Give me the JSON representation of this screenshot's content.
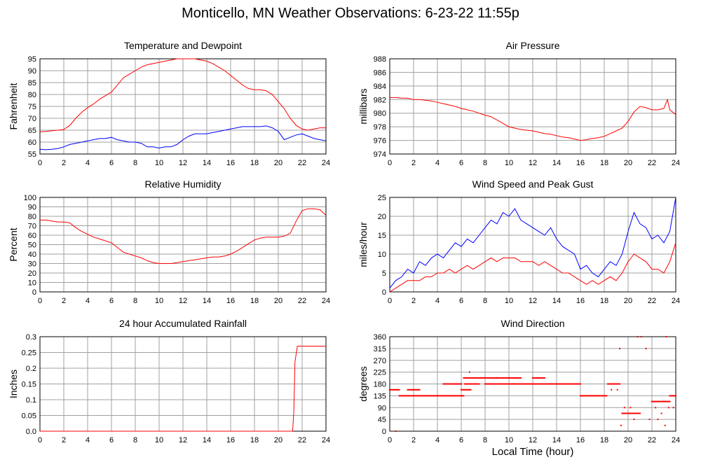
{
  "title": "Monticello, MN Weather Observations: 6-23-22 11:55p",
  "xlabel_shared": "Local Time (hour)",
  "chart_data": [
    {
      "type": "line",
      "title": "Temperature and Dewpoint",
      "ylabel": "Fahrenheit",
      "xlim": [
        0,
        24
      ],
      "ylim": [
        55,
        95
      ],
      "xticks": [
        0,
        2,
        4,
        6,
        8,
        10,
        12,
        14,
        16,
        18,
        20,
        22,
        24
      ],
      "yticks": [
        55,
        60,
        65,
        70,
        75,
        80,
        85,
        90,
        95
      ],
      "grid": true,
      "series": [
        {
          "color": "#ff0000",
          "x": [
            0,
            0.5,
            1,
            1.5,
            2,
            2.5,
            3,
            3.5,
            4,
            4.5,
            5,
            5.5,
            6,
            6.5,
            7,
            7.5,
            8,
            8.5,
            9,
            9.5,
            10,
            10.5,
            11,
            11.5,
            12,
            12.5,
            13,
            13.5,
            14,
            14.5,
            15,
            15.5,
            16,
            16.5,
            17,
            17.5,
            18,
            18.5,
            19,
            19.5,
            20,
            20.5,
            21,
            21.5,
            22,
            22.5,
            23,
            23.5,
            24
          ],
          "y": [
            64.3,
            64.5,
            64.8,
            65,
            65.3,
            67,
            70,
            72.5,
            74.5,
            76,
            78,
            79.5,
            81,
            84,
            87,
            88.5,
            90,
            91.5,
            92.5,
            93,
            93.5,
            94,
            94.5,
            95,
            95,
            95,
            95,
            94.5,
            94,
            93,
            91.5,
            90,
            88,
            86,
            84,
            82.5,
            82,
            82,
            81.5,
            80,
            77,
            74,
            70,
            67,
            65.5,
            65,
            65.5,
            66,
            66
          ]
        },
        {
          "color": "#0000ff",
          "x": [
            0,
            0.5,
            1,
            1.5,
            2,
            2.5,
            3,
            3.5,
            4,
            4.5,
            5,
            5.5,
            6,
            6.5,
            7,
            7.5,
            8,
            8.5,
            9,
            9.5,
            10,
            10.5,
            11,
            11.5,
            12,
            12.5,
            13,
            13.5,
            14,
            14.5,
            15,
            15.5,
            16,
            16.5,
            17,
            17.5,
            18,
            18.5,
            19,
            19.5,
            20,
            20.5,
            21,
            21.5,
            22,
            22.5,
            23,
            23.5,
            24
          ],
          "y": [
            57,
            56.8,
            57,
            57.3,
            58,
            59,
            59.5,
            60,
            60.5,
            61,
            61.5,
            61.5,
            62,
            61,
            60.5,
            60,
            60,
            59.5,
            58,
            58,
            57.5,
            58,
            58,
            59,
            61,
            62.5,
            63.5,
            63.5,
            63.5,
            64,
            64.5,
            65,
            65.5,
            66,
            66.5,
            66.5,
            66.5,
            66.5,
            66.8,
            66,
            64.5,
            61,
            62,
            63,
            63.5,
            62.5,
            61.5,
            61,
            60.5
          ]
        }
      ]
    },
    {
      "type": "line",
      "title": "Air Pressure",
      "ylabel": "millibars",
      "xlim": [
        0,
        24
      ],
      "ylim": [
        974,
        988
      ],
      "xticks": [
        0,
        2,
        4,
        6,
        8,
        10,
        12,
        14,
        16,
        18,
        20,
        22,
        24
      ],
      "yticks": [
        974,
        976,
        978,
        980,
        982,
        984,
        986,
        988
      ],
      "grid": true,
      "series": [
        {
          "color": "#ff0000",
          "x": [
            0,
            0.5,
            1,
            1.5,
            2,
            2.5,
            3,
            3.5,
            4,
            4.5,
            5,
            5.5,
            6,
            6.5,
            7,
            7.5,
            8,
            8.5,
            9,
            9.5,
            10,
            10.5,
            11,
            11.5,
            12,
            12.5,
            13,
            13.5,
            14,
            14.5,
            15,
            15.5,
            16,
            16.5,
            17,
            17.5,
            18,
            18.5,
            19,
            19.5,
            20,
            20.5,
            21,
            21.5,
            22,
            22.5,
            23,
            23.3,
            23.5,
            24
          ],
          "y": [
            982.3,
            982.3,
            982.2,
            982.2,
            982,
            982,
            981.9,
            981.8,
            981.6,
            981.4,
            981.2,
            981,
            980.7,
            980.5,
            980.3,
            980,
            979.7,
            979.5,
            979,
            978.5,
            978,
            977.8,
            977.6,
            977.5,
            977.4,
            977.2,
            977,
            976.9,
            976.7,
            976.5,
            976.4,
            976.2,
            976,
            976.1,
            976.3,
            976.4,
            976.6,
            977,
            977.4,
            977.8,
            978.8,
            980.2,
            981,
            980.8,
            980.5,
            980.5,
            980.7,
            982,
            980.5,
            979.8
          ]
        }
      ]
    },
    {
      "type": "line",
      "title": "Relative Humidity",
      "ylabel": "Percent",
      "xlim": [
        0,
        24
      ],
      "ylim": [
        0,
        100
      ],
      "xticks": [
        0,
        2,
        4,
        6,
        8,
        10,
        12,
        14,
        16,
        18,
        20,
        22,
        24
      ],
      "yticks": [
        0,
        10,
        20,
        30,
        40,
        50,
        60,
        70,
        80,
        90,
        100
      ],
      "grid": true,
      "series": [
        {
          "color": "#ff0000",
          "x": [
            0,
            0.5,
            1,
            1.5,
            2,
            2.5,
            3,
            3.5,
            4,
            4.5,
            5,
            5.5,
            6,
            6.5,
            7,
            7.5,
            8,
            8.5,
            9,
            9.5,
            10,
            10.5,
            11,
            11.5,
            12,
            12.5,
            13,
            13.5,
            14,
            14.5,
            15,
            15.5,
            16,
            16.5,
            17,
            17.5,
            18,
            18.5,
            19,
            19.5,
            20,
            20.5,
            21,
            21.5,
            22,
            22.5,
            23,
            23.5,
            24
          ],
          "y": [
            76,
            76,
            75,
            74,
            74,
            73,
            68,
            64,
            61,
            58,
            56,
            54,
            52,
            47,
            42,
            40,
            38,
            36,
            33,
            31,
            30,
            30,
            30,
            31,
            32,
            33,
            34,
            35,
            36,
            37,
            37,
            38,
            40,
            43,
            47,
            51,
            55,
            57,
            58,
            58,
            58,
            59,
            62,
            75,
            86,
            88,
            88,
            87,
            81
          ]
        }
      ]
    },
    {
      "type": "line",
      "title": "Wind Speed and Peak Gust",
      "ylabel": "miles/hour",
      "xlim": [
        0,
        24
      ],
      "ylim": [
        0,
        25
      ],
      "xticks": [
        0,
        2,
        4,
        6,
        8,
        10,
        12,
        14,
        16,
        18,
        20,
        22,
        24
      ],
      "yticks": [
        0,
        5,
        10,
        15,
        20,
        25
      ],
      "grid": true,
      "series": [
        {
          "color": "#0000ff",
          "x": [
            0,
            0.5,
            1,
            1.5,
            2,
            2.5,
            3,
            3.5,
            4,
            4.5,
            5,
            5.5,
            6,
            6.5,
            7,
            7.5,
            8,
            8.5,
            9,
            9.5,
            10,
            10.5,
            11,
            11.5,
            12,
            12.5,
            13,
            13.5,
            14,
            14.5,
            15,
            15.5,
            16,
            16.5,
            17,
            17.5,
            18,
            18.5,
            19,
            19.5,
            20,
            20.5,
            21,
            21.5,
            22,
            22.5,
            23,
            23.5,
            24
          ],
          "y": [
            1,
            3,
            4,
            6,
            5,
            8,
            7,
            9,
            10,
            9,
            11,
            13,
            12,
            14,
            13,
            15,
            17,
            19,
            18,
            21,
            20,
            22,
            19,
            18,
            17,
            16,
            15,
            17,
            14,
            12,
            11,
            10,
            6,
            7,
            5,
            4,
            6,
            8,
            7,
            10,
            16,
            21,
            18,
            17,
            14,
            15,
            13,
            16,
            25
          ]
        },
        {
          "color": "#ff0000",
          "x": [
            0,
            0.5,
            1,
            1.5,
            2,
            2.5,
            3,
            3.5,
            4,
            4.5,
            5,
            5.5,
            6,
            6.5,
            7,
            7.5,
            8,
            8.5,
            9,
            9.5,
            10,
            10.5,
            11,
            11.5,
            12,
            12.5,
            13,
            13.5,
            14,
            14.5,
            15,
            15.5,
            16,
            16.5,
            17,
            17.5,
            18,
            18.5,
            19,
            19.5,
            20,
            20.5,
            21,
            21.5,
            22,
            22.5,
            23,
            23.5,
            24
          ],
          "y": [
            0,
            1,
            2,
            3,
            3,
            3,
            4,
            4,
            5,
            5,
            6,
            5,
            6,
            7,
            6,
            7,
            8,
            9,
            8,
            9,
            9,
            9,
            8,
            8,
            8,
            7,
            8,
            7,
            6,
            5,
            5,
            4,
            3,
            2,
            3,
            2,
            3,
            4,
            3,
            5,
            8,
            10,
            9,
            8,
            6,
            6,
            5,
            8,
            13
          ]
        }
      ]
    },
    {
      "type": "line",
      "title": "24 hour Accumulated Rainfall",
      "ylabel": "Inches",
      "xlim": [
        0,
        24
      ],
      "ylim": [
        0,
        0.3
      ],
      "xticks": [
        0,
        2,
        4,
        6,
        8,
        10,
        12,
        14,
        16,
        18,
        20,
        22,
        24
      ],
      "yticks": [
        "0.0",
        "0.05",
        "0.1",
        "0.15",
        "0.2",
        "0.25",
        "0.3"
      ],
      "grid": true,
      "series": [
        {
          "color": "#ff0000",
          "x": [
            0,
            21.2,
            21.3,
            21.4,
            21.6,
            24
          ],
          "y": [
            0,
            0,
            0.06,
            0.22,
            0.27,
            0.27
          ]
        }
      ]
    },
    {
      "type": "scatter",
      "title": "Wind Direction",
      "ylabel": "degrees",
      "xlabel": "Local Time (hour)",
      "xlim": [
        0,
        24
      ],
      "ylim": [
        0,
        360
      ],
      "xticks": [
        0,
        2,
        4,
        6,
        8,
        10,
        12,
        14,
        16,
        18,
        20,
        22,
        24
      ],
      "yticks": [
        0,
        45,
        90,
        135,
        180,
        225,
        270,
        315,
        360
      ],
      "grid": true,
      "series": [
        {
          "color": "#ff0000",
          "segments": [
            {
              "x0": 0,
              "x1": 0.8,
              "y": 158
            },
            {
              "x0": 0.8,
              "x1": 6.2,
              "y": 135
            },
            {
              "x0": 1.5,
              "x1": 2.5,
              "y": 158
            },
            {
              "x0": 4.5,
              "x1": 6,
              "y": 180
            },
            {
              "x0": 6,
              "x1": 6.8,
              "y": 158
            },
            {
              "x0": 6.2,
              "x1": 9,
              "y": 203
            },
            {
              "x0": 6.3,
              "x1": 7.5,
              "y": 180
            },
            {
              "x0": 9,
              "x1": 11,
              "y": 203
            },
            {
              "x0": 8,
              "x1": 16,
              "y": 180
            },
            {
              "x0": 12,
              "x1": 13,
              "y": 203
            },
            {
              "x0": 16,
              "x1": 18.2,
              "y": 135
            },
            {
              "x0": 18.3,
              "x1": 19.3,
              "y": 180
            },
            {
              "x0": 19.5,
              "x1": 21,
              "y": 68
            },
            {
              "x0": 22,
              "x1": 23.5,
              "y": 113
            },
            {
              "x0": 23.5,
              "x1": 24,
              "y": 135
            }
          ],
          "points": [
            [
              0.5,
              0
            ],
            [
              6.7,
              225
            ],
            [
              19.3,
              315
            ],
            [
              20.8,
              360
            ],
            [
              21.1,
              360
            ],
            [
              23.2,
              360
            ],
            [
              21.5,
              315
            ],
            [
              19.4,
              22
            ],
            [
              20.5,
              45
            ],
            [
              22.5,
              45
            ],
            [
              23.1,
              22
            ],
            [
              22.8,
              68
            ],
            [
              23.4,
              90
            ],
            [
              23.8,
              90
            ],
            [
              19.7,
              90
            ],
            [
              20.2,
              90
            ],
            [
              21.8,
              45
            ],
            [
              22.3,
              90
            ],
            [
              18.6,
              158
            ],
            [
              19.1,
              158
            ]
          ]
        }
      ]
    }
  ]
}
